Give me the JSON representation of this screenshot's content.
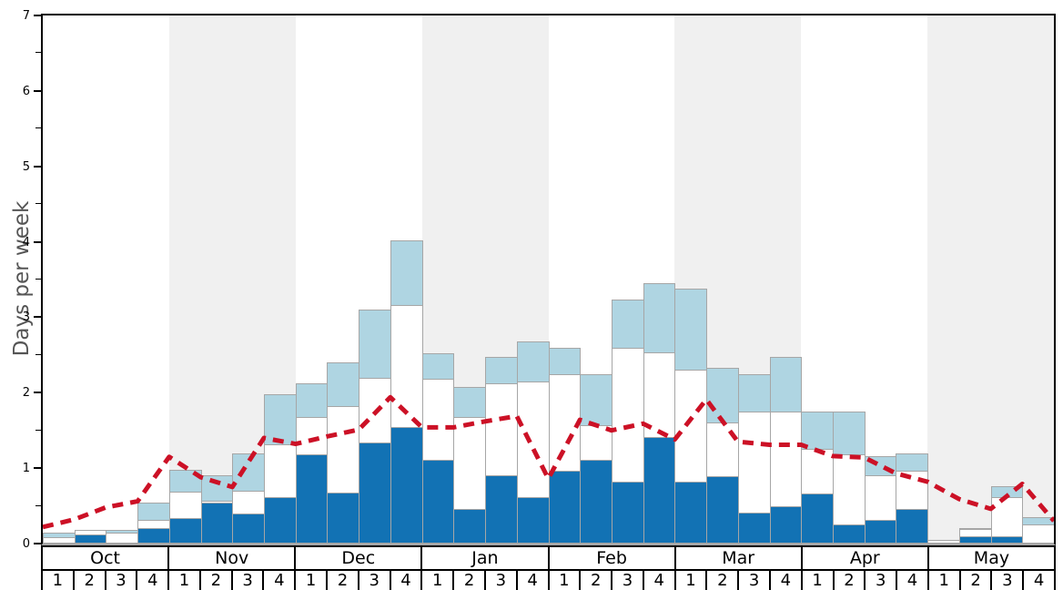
{
  "y_axis": {
    "label": "Days per week",
    "ticks": [
      "0",
      "1",
      "2",
      "3",
      "4",
      "5",
      "6",
      "7"
    ],
    "min": 0,
    "max": 7
  },
  "x_axis": {
    "months": [
      {
        "label": "Oct",
        "weeks": [
          "1",
          "2",
          "3",
          "4"
        ],
        "shaded": false
      },
      {
        "label": "Nov",
        "weeks": [
          "1",
          "2",
          "3",
          "4"
        ],
        "shaded": true
      },
      {
        "label": "Dec",
        "weeks": [
          "1",
          "2",
          "3",
          "4"
        ],
        "shaded": false
      },
      {
        "label": "Jan",
        "weeks": [
          "1",
          "2",
          "3",
          "4"
        ],
        "shaded": true
      },
      {
        "label": "Feb",
        "weeks": [
          "1",
          "2",
          "3",
          "4"
        ],
        "shaded": false
      },
      {
        "label": "Mar",
        "weeks": [
          "1",
          "2",
          "3",
          "4"
        ],
        "shaded": true
      },
      {
        "label": "Apr",
        "weeks": [
          "1",
          "2",
          "3",
          "4"
        ],
        "shaded": false
      },
      {
        "label": "May",
        "weeks": [
          "1",
          "2",
          "3",
          "4"
        ],
        "shaded": true
      }
    ]
  },
  "chart_data": {
    "type": "bar",
    "stacked": true,
    "ylabel": "Days per week",
    "ylim": [
      0,
      7
    ],
    "grid": false,
    "categories": [
      "Oct-1",
      "Oct-2",
      "Oct-3",
      "Oct-4",
      "Nov-1",
      "Nov-2",
      "Nov-3",
      "Nov-4",
      "Dec-1",
      "Dec-2",
      "Dec-3",
      "Dec-4",
      "Jan-1",
      "Jan-2",
      "Jan-3",
      "Jan-4",
      "Feb-1",
      "Feb-2",
      "Feb-3",
      "Feb-4",
      "Mar-1",
      "Mar-2",
      "Mar-3",
      "Mar-4",
      "Apr-1",
      "Apr-2",
      "Apr-3",
      "Apr-4",
      "May-1",
      "May-2",
      "May-3",
      "May-4"
    ],
    "series": [
      {
        "name": "dark-blue-segment",
        "color": "#1272b4",
        "cumulative_top": [
          0,
          0.12,
          0,
          0.2,
          0.34,
          0.54,
          0.4,
          0.61,
          1.18,
          0.68,
          1.34,
          1.54,
          1.11,
          0.46,
          0.9,
          0.62,
          0.97,
          1.11,
          0.82,
          1.41,
          0.82,
          0.89,
          0.41,
          0.49,
          0.67,
          0.25,
          0.32,
          0.46,
          0,
          0.1,
          0.1,
          0
        ]
      },
      {
        "name": "white-segment",
        "color": "#ffffff",
        "cumulative_top": [
          0.08,
          0.18,
          0.14,
          0.32,
          0.69,
          0.57,
          0.7,
          1.31,
          1.68,
          1.82,
          2.2,
          3.16,
          2.18,
          1.68,
          2.12,
          2.15,
          2.25,
          1.57,
          2.59,
          2.54,
          2.3,
          1.61,
          1.75,
          1.75,
          1.26,
          1.18,
          0.91,
          0.97,
          0.05,
          0.19,
          0.61,
          0.25
        ]
      },
      {
        "name": "light-blue-segment",
        "color": "#afd5e2",
        "cumulative_top": [
          0.14,
          0.18,
          0.18,
          0.54,
          0.98,
          0.9,
          1.19,
          1.98,
          2.12,
          2.4,
          3.1,
          4.02,
          2.52,
          2.08,
          2.48,
          2.68,
          2.6,
          2.25,
          3.24,
          3.45,
          3.38,
          2.33,
          2.25,
          2.47,
          1.75,
          1.75,
          1.16,
          1.19,
          0.05,
          0.21,
          0.76,
          0.35
        ]
      }
    ],
    "line": {
      "name": "red-dashed-line",
      "color": "#cc1126",
      "style": "dashed",
      "vertex_position": "week-start-plus-right-edge",
      "points": [
        0.22,
        0.32,
        0.48,
        0.56,
        1.15,
        0.88,
        0.75,
        1.4,
        1.32,
        1.42,
        1.51,
        1.94,
        1.54,
        1.54,
        1.62,
        1.69,
        0.86,
        1.64,
        1.5,
        1.59,
        1.38,
        1.91,
        1.35,
        1.31,
        1.31,
        1.16,
        1.14,
        0.93,
        0.82,
        0.59,
        0.46,
        0.79,
        0.3
      ]
    },
    "shaded_months": [
      "Nov",
      "Jan",
      "Mar",
      "May"
    ]
  },
  "colors": {
    "dark_blue": "#1272b4",
    "light_blue": "#afd5e2",
    "white_bar": "#ffffff",
    "bar_border": "#a6a6a6",
    "shaded_band": "#f0f0f0",
    "line_red": "#cc1126",
    "axis_black": "#000000",
    "baseline_gray": "#a8a8a8",
    "ylabel_gray": "#555555"
  }
}
